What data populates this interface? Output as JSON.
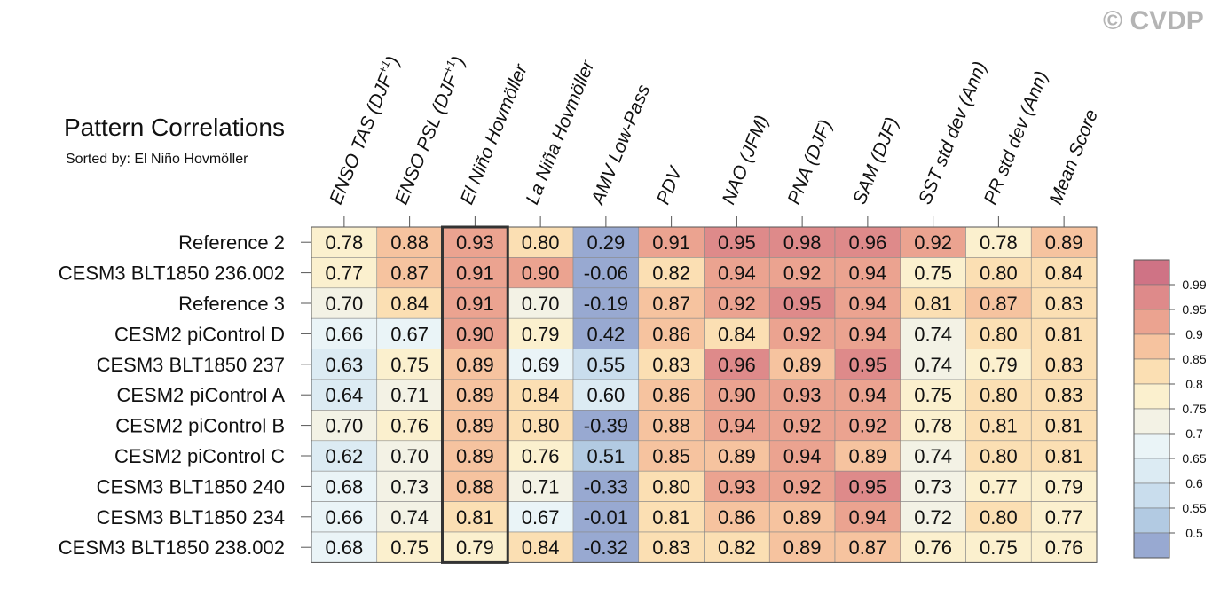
{
  "watermark": "© CVDP",
  "title": "Pattern Correlations",
  "subtitle": "Sorted by: El Niño Hovmöller",
  "chart_data": {
    "type": "heatmap",
    "title": "Pattern Correlations",
    "subtitle": "Sorted by: El Niño Hovmöller",
    "columns": [
      "ENSO TAS (DJF+1)",
      "ENSO PSL (DJF+1)",
      "El Niño Hovmöller",
      "La Niña Hovmöller",
      "AMV Low-Pass",
      "PDV",
      "NAO (JFM)",
      "PNA (DJF)",
      "SAM (DJF)",
      "SST std dev (Ann)",
      "PR std dev (Ann)",
      "Mean Score"
    ],
    "rows": [
      "Reference 2",
      "CESM3 BLT1850 236.002",
      "Reference 3",
      "CESM2 piControl D",
      "CESM3 BLT1850 237",
      "CESM2 piControl A",
      "CESM2 piControl B",
      "CESM2 piControl C",
      "CESM3 BLT1850 240",
      "CESM3 BLT1850 234",
      "CESM3 BLT1850 238.002"
    ],
    "values": [
      [
        "0.78",
        "0.88",
        "0.93",
        "0.80",
        "0.29",
        "0.91",
        "0.95",
        "0.98",
        "0.96",
        "0.92",
        "0.78",
        "0.89"
      ],
      [
        "0.77",
        "0.87",
        "0.91",
        "0.90",
        "-0.06",
        "0.82",
        "0.94",
        "0.92",
        "0.94",
        "0.75",
        "0.80",
        "0.84"
      ],
      [
        "0.70",
        "0.84",
        "0.91",
        "0.70",
        "-0.19",
        "0.87",
        "0.92",
        "0.95",
        "0.94",
        "0.81",
        "0.87",
        "0.83"
      ],
      [
        "0.66",
        "0.67",
        "0.90",
        "0.79",
        "0.42",
        "0.86",
        "0.84",
        "0.92",
        "0.94",
        "0.74",
        "0.80",
        "0.81"
      ],
      [
        "0.63",
        "0.75",
        "0.89",
        "0.69",
        "0.55",
        "0.83",
        "0.96",
        "0.89",
        "0.95",
        "0.74",
        "0.79",
        "0.83"
      ],
      [
        "0.64",
        "0.71",
        "0.89",
        "0.84",
        "0.60",
        "0.86",
        "0.90",
        "0.93",
        "0.94",
        "0.75",
        "0.80",
        "0.83"
      ],
      [
        "0.70",
        "0.76",
        "0.89",
        "0.80",
        "-0.39",
        "0.88",
        "0.94",
        "0.92",
        "0.92",
        "0.78",
        "0.81",
        "0.81"
      ],
      [
        "0.62",
        "0.70",
        "0.89",
        "0.76",
        "0.51",
        "0.85",
        "0.89",
        "0.94",
        "0.89",
        "0.74",
        "0.80",
        "0.81"
      ],
      [
        "0.68",
        "0.73",
        "0.88",
        "0.71",
        "-0.33",
        "0.80",
        "0.93",
        "0.92",
        "0.95",
        "0.73",
        "0.77",
        "0.79"
      ],
      [
        "0.66",
        "0.74",
        "0.81",
        "0.67",
        "-0.01",
        "0.81",
        "0.86",
        "0.89",
        "0.94",
        "0.72",
        "0.80",
        "0.77"
      ],
      [
        "0.68",
        "0.75",
        "0.79",
        "0.84",
        "-0.32",
        "0.83",
        "0.82",
        "0.89",
        "0.87",
        "0.76",
        "0.75",
        "0.76"
      ]
    ],
    "highlighted_column": "El Niño Hovmöller",
    "colorbar": {
      "labels": [
        "0.99",
        "0.95",
        "0.9",
        "0.85",
        "0.8",
        "0.75",
        "0.7",
        "0.65",
        "0.6",
        "0.55",
        "0.5"
      ],
      "levels": [
        0.5,
        0.55,
        0.6,
        0.65,
        0.7,
        0.75,
        0.8,
        0.85,
        0.9,
        0.95,
        0.99
      ],
      "colors": [
        "#98a9d1",
        "#b2cae2",
        "#c9dded",
        "#dcebf3",
        "#eaf4f7",
        "#f3f2e5",
        "#fbf0ce",
        "#fbdfb3",
        "#f6c39f",
        "#eba390",
        "#de8a8a",
        "#cf7385"
      ]
    }
  }
}
